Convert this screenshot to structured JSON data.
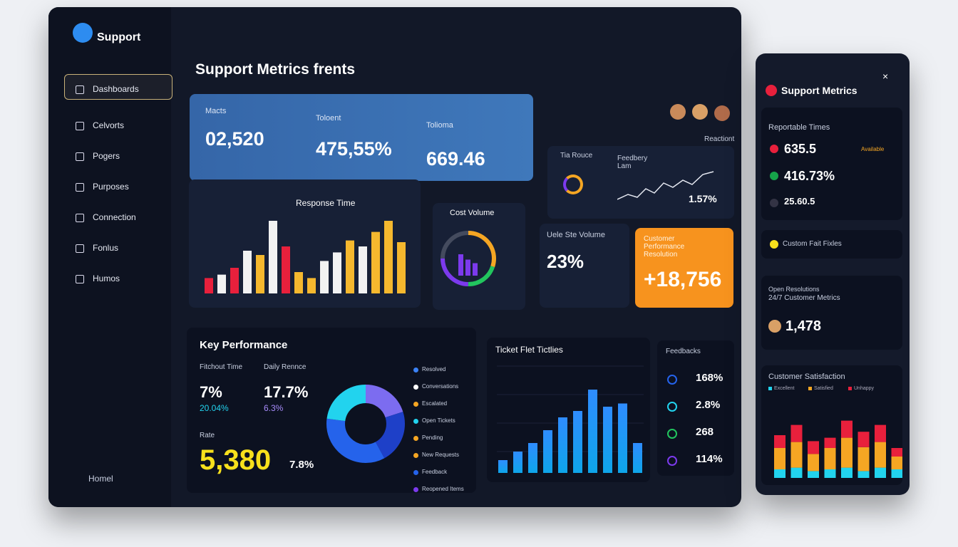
{
  "sidebar": {
    "brand": "Support",
    "items": [
      "Dashboards",
      "Celvorts",
      "Pogers",
      "Purposes",
      "Connection",
      "Fonlus",
      "Humos"
    ],
    "footer": "Homel"
  },
  "header": {
    "title": "Support Metrics frents"
  },
  "kpis": [
    {
      "label": "Macts",
      "value": "02,520"
    },
    {
      "label": "Toloent",
      "value": "475,55%"
    },
    {
      "label": "Tolioma",
      "value": "669.46"
    }
  ],
  "trend": {
    "label": "Reactiont",
    "title": "Tia Rouce",
    "subtitle": "Feedbery Lam",
    "value": "1.57%"
  },
  "response_time": {
    "title": "Response Time",
    "values": [
      18,
      22,
      30,
      50,
      45,
      85,
      55,
      25,
      18,
      38,
      48,
      62,
      55,
      72,
      85,
      60
    ],
    "colors": [
      "#e8203c",
      "#f2f2f2",
      "#e8203c",
      "#f2f2f2",
      "#f5b82e",
      "#f2f2f2",
      "#e8203c",
      "#f5b82e",
      "#f5b82e",
      "#f2f2f2",
      "#f2f2f2",
      "#f5b82e",
      "#f2f2f2",
      "#f5b82e",
      "#f5b82e",
      "#f5b82e"
    ]
  },
  "cost_volume": {
    "title": "Cost Volume",
    "segments": [
      30,
      20,
      25,
      25
    ],
    "colors": [
      "#f5a623",
      "#22c55e",
      "#7c3aed",
      "#444b5e"
    ],
    "bars": [
      60,
      45,
      35
    ]
  },
  "site_volume": {
    "title": "Uele Ste Volume",
    "value": "23%"
  },
  "resolution": {
    "title": "Customer Performance Resolution",
    "value": "+18,756"
  },
  "key_performance": {
    "title": "Key Performance",
    "metrics": [
      {
        "label": "Fitchout Time",
        "value": "7%",
        "delta": "20.04%"
      },
      {
        "label": "Daily Rennce",
        "value": "17.7%",
        "delta": "6.3%"
      }
    ],
    "rate": {
      "label": "Rate",
      "value": "5,380",
      "delta": "7.8%"
    },
    "donut": {
      "values": [
        20,
        22,
        35,
        23
      ],
      "colors": [
        "#7c6cf0",
        "#1e40c8",
        "#2563eb",
        "#22d3ee"
      ]
    },
    "legend": [
      "Resolved",
      "Conversations",
      "Escalated",
      "Open Tickets",
      "Pending",
      "New Requests",
      "Feedback",
      "Reopened Items"
    ],
    "legend_colors": [
      "#3b82f6",
      "#ffffff",
      "#f5a623",
      "#22d3ee",
      "#f5a623",
      "#f5a623",
      "#2563eb",
      "#7c3aed"
    ]
  },
  "ticket": {
    "title": "Ticket Flet Tictlies",
    "values": [
      12,
      20,
      28,
      40,
      52,
      58,
      78,
      62,
      65,
      28
    ],
    "color": "#1e88e5"
  },
  "feedback": {
    "title": "Feedbacks",
    "rows": [
      "168%",
      "2.8%",
      "268",
      "114%"
    ]
  },
  "side_panel": {
    "title": "Support Metrics",
    "card_title": "Reportable Times",
    "rows": [
      "635.5",
      "416.73%",
      "25.60.5"
    ],
    "row_tag": "Available",
    "fixes": "Custom Fait Fixles",
    "open_title": "Open Resolutions",
    "open_subtitle": "24/7 Customer Metrics",
    "open_value": "1,478",
    "satisfaction": {
      "title": "Customer Satisfaction",
      "series": [
        {
          "name": "Excellent",
          "color": "#22d3ee",
          "values": [
            10,
            12,
            8,
            10,
            12,
            8,
            12,
            10
          ]
        },
        {
          "name": "Satisfied",
          "color": "#f5a623",
          "values": [
            25,
            30,
            20,
            25,
            35,
            28,
            30,
            15
          ]
        },
        {
          "name": "Unhappy",
          "color": "#e8203c",
          "values": [
            15,
            20,
            15,
            12,
            20,
            18,
            20,
            10
          ]
        }
      ]
    }
  }
}
